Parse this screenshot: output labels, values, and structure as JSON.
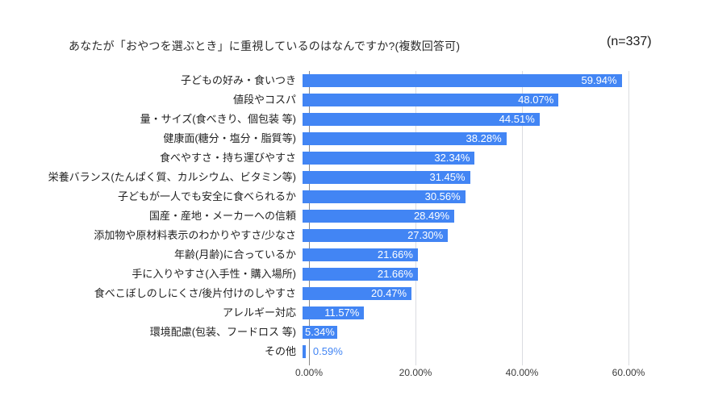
{
  "header": {
    "title": "あなたが「おやつを選ぶとき」に重視しているのはなんですか?(複数回答可)",
    "sample_size": "(n=337)"
  },
  "chart_data": {
    "type": "bar",
    "orientation": "horizontal",
    "title": "あなたが「おやつを選ぶとき」に重視しているのはなんですか?(複数回答可)",
    "sample_size": "(n=337)",
    "categories": [
      "子どもの好み・食いつき",
      "値段やコスパ",
      "量・サイズ(食べきり、個包装 等)",
      "健康面(糖分・塩分・脂質等)",
      "食べやすさ・持ち運びやすさ",
      "栄養バランス(たんぱく質、カルシウム、ビタミン等)",
      "子どもが一人でも安全に食べられるか",
      "国産・産地・メーカーへの信頼",
      "添加物や原材料表示のわかりやすさ/少なさ",
      "年齢(月齢)に合っているか",
      "手に入りやすさ(入手性・購入場所)",
      "食べこぼしのしにくさ/後片付けのしやすさ",
      "アレルギー対応",
      "環境配慮(包装、フードロス 等)",
      "その他"
    ],
    "values": [
      59.94,
      48.07,
      44.51,
      38.28,
      32.34,
      31.45,
      30.56,
      28.49,
      27.3,
      21.66,
      21.66,
      20.47,
      11.57,
      5.34,
      0.59
    ],
    "value_labels": [
      "59.94%",
      "48.07%",
      "44.51%",
      "38.28%",
      "32.34%",
      "31.45%",
      "30.56%",
      "28.49%",
      "27.30%",
      "21.66%",
      "21.66%",
      "20.47%",
      "11.57%",
      "5.34%",
      "0.59%"
    ],
    "x_ticks": [
      "0.00%",
      "20.00%",
      "40.00%",
      "60.00%"
    ],
    "x_tick_values": [
      0,
      20,
      40,
      60
    ],
    "xlim": [
      0,
      60
    ],
    "grid": true,
    "legend": "none",
    "colors": {
      "bar": "#4285f4",
      "value_label_inside": "#ffffff",
      "value_label_outside": "#4285f4",
      "gridline": "#dadce0",
      "axis_line": "#8a8a8a",
      "axis_text": "#3c3c3c",
      "category_text": "#1f1f1f",
      "title_text": "#2b2b2b"
    }
  }
}
